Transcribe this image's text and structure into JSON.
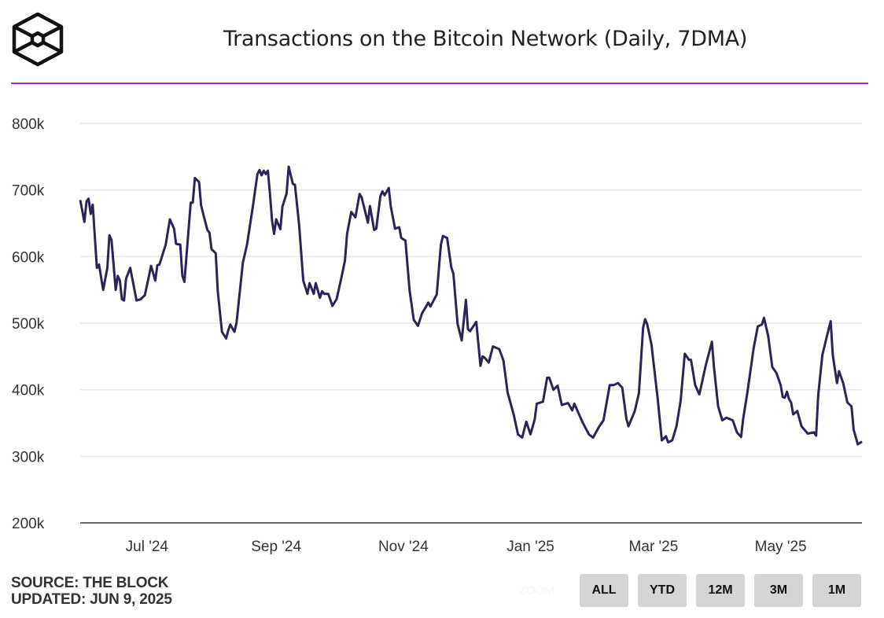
{
  "header": {
    "title": "Transactions on the Bitcoin Network (Daily, 7DMA)",
    "logo_icon": "the-block-cube-logo"
  },
  "footer": {
    "source": "SOURCE: THE BLOCK",
    "updated": "UPDATED: JUN 9, 2025"
  },
  "zoom": {
    "label": "ZOOM",
    "buttons": [
      "ALL",
      "YTD",
      "12M",
      "3M",
      "1M"
    ]
  },
  "colors": {
    "line": "#2a2458",
    "accent_rule": "#9b2bea",
    "grid": "#e6e6e6"
  },
  "chart_data": {
    "type": "line",
    "title": "Transactions on the Bitcoin Network (Daily, 7DMA)",
    "xlabel": "",
    "ylabel": "",
    "ylim": [
      200000,
      800000
    ],
    "y_ticks": [
      200000,
      300000,
      400000,
      500000,
      600000,
      700000,
      800000
    ],
    "y_tick_labels": [
      "200k",
      "300k",
      "400k",
      "500k",
      "600k",
      "700k",
      "800k"
    ],
    "x_ticks": [
      "2024-07-01",
      "2024-09-01",
      "2024-11-01",
      "2025-01-01",
      "2025-03-01",
      "2025-05-01"
    ],
    "x_tick_labels": [
      "Jul '24",
      "Sep '24",
      "Nov '24",
      "Jan '25",
      "Mar '25",
      "May '25"
    ],
    "xlim": [
      "2024-05-30",
      "2025-06-09"
    ],
    "grid": true,
    "legend": "none",
    "series": [
      {
        "points": [
          [
            "2024-05-30",
            685000
          ],
          [
            "2024-06-01",
            652000
          ],
          [
            "2024-06-02",
            683000
          ],
          [
            "2024-06-03",
            687000
          ],
          [
            "2024-06-04",
            664000
          ],
          [
            "2024-06-05",
            678000
          ],
          [
            "2024-06-07",
            583000
          ],
          [
            "2024-06-08",
            588000
          ],
          [
            "2024-06-10",
            550000
          ],
          [
            "2024-06-12",
            583000
          ],
          [
            "2024-06-13",
            632000
          ],
          [
            "2024-06-14",
            625000
          ],
          [
            "2024-06-16",
            550000
          ],
          [
            "2024-06-17",
            571000
          ],
          [
            "2024-06-18",
            564000
          ],
          [
            "2024-06-19",
            536000
          ],
          [
            "2024-06-20",
            534000
          ],
          [
            "2024-06-21",
            567000
          ],
          [
            "2024-06-23",
            583000
          ],
          [
            "2024-06-26",
            534000
          ],
          [
            "2024-06-28",
            536000
          ],
          [
            "2024-06-30",
            542000
          ],
          [
            "2024-07-03",
            586000
          ],
          [
            "2024-07-05",
            564000
          ],
          [
            "2024-07-06",
            587000
          ],
          [
            "2024-07-07",
            588000
          ],
          [
            "2024-07-10",
            618000
          ],
          [
            "2024-07-12",
            656000
          ],
          [
            "2024-07-14",
            642000
          ],
          [
            "2024-07-15",
            619000
          ],
          [
            "2024-07-17",
            618000
          ],
          [
            "2024-07-18",
            571000
          ],
          [
            "2024-07-19",
            562000
          ],
          [
            "2024-07-22",
            681000
          ],
          [
            "2024-07-23",
            681000
          ],
          [
            "2024-07-24",
            718000
          ],
          [
            "2024-07-26",
            712000
          ],
          [
            "2024-07-27",
            677000
          ],
          [
            "2024-07-28",
            664000
          ],
          [
            "2024-07-30",
            640000
          ],
          [
            "2024-07-31",
            636000
          ],
          [
            "2024-08-01",
            611000
          ],
          [
            "2024-08-03",
            605000
          ],
          [
            "2024-08-04",
            548000
          ],
          [
            "2024-08-06",
            487000
          ],
          [
            "2024-08-08",
            477000
          ],
          [
            "2024-08-09",
            489000
          ],
          [
            "2024-08-10",
            498000
          ],
          [
            "2024-08-12",
            487000
          ],
          [
            "2024-08-13",
            501000
          ],
          [
            "2024-08-16",
            591000
          ],
          [
            "2024-08-18",
            618000
          ],
          [
            "2024-08-21",
            679000
          ],
          [
            "2024-08-23",
            724000
          ],
          [
            "2024-08-24",
            730000
          ],
          [
            "2024-08-25",
            722000
          ],
          [
            "2024-08-26",
            729000
          ],
          [
            "2024-08-27",
            724000
          ],
          [
            "2024-08-28",
            729000
          ],
          [
            "2024-08-29",
            695000
          ],
          [
            "2024-08-30",
            654000
          ],
          [
            "2024-08-31",
            634000
          ],
          [
            "2024-09-01",
            656000
          ],
          [
            "2024-09-03",
            641000
          ],
          [
            "2024-09-04",
            675000
          ],
          [
            "2024-09-06",
            695000
          ],
          [
            "2024-09-07",
            735000
          ],
          [
            "2024-09-09",
            709000
          ],
          [
            "2024-09-10",
            708000
          ],
          [
            "2024-09-12",
            648000
          ],
          [
            "2024-09-14",
            564000
          ],
          [
            "2024-09-16",
            544000
          ],
          [
            "2024-09-17",
            560000
          ],
          [
            "2024-09-19",
            544000
          ],
          [
            "2024-09-20",
            560000
          ],
          [
            "2024-09-22",
            538000
          ],
          [
            "2024-09-23",
            548000
          ],
          [
            "2024-09-24",
            544000
          ],
          [
            "2024-09-26",
            544000
          ],
          [
            "2024-09-28",
            526000
          ],
          [
            "2024-09-30",
            536000
          ],
          [
            "2024-10-02",
            564000
          ],
          [
            "2024-10-04",
            594000
          ],
          [
            "2024-10-05",
            634000
          ],
          [
            "2024-10-07",
            667000
          ],
          [
            "2024-10-09",
            659000
          ],
          [
            "2024-10-11",
            694000
          ],
          [
            "2024-10-12",
            689000
          ],
          [
            "2024-10-15",
            651000
          ],
          [
            "2024-10-16",
            676000
          ],
          [
            "2024-10-18",
            640000
          ],
          [
            "2024-10-19",
            642000
          ],
          [
            "2024-10-21",
            691000
          ],
          [
            "2024-10-22",
            698000
          ],
          [
            "2024-10-23",
            692000
          ],
          [
            "2024-10-25",
            703000
          ],
          [
            "2024-10-26",
            675000
          ],
          [
            "2024-10-28",
            642000
          ],
          [
            "2024-10-30",
            644000
          ],
          [
            "2024-10-31",
            628000
          ],
          [
            "2024-11-02",
            624000
          ],
          [
            "2024-11-04",
            549000
          ],
          [
            "2024-11-06",
            505000
          ],
          [
            "2024-11-08",
            496000
          ],
          [
            "2024-11-10",
            515000
          ],
          [
            "2024-11-13",
            531000
          ],
          [
            "2024-11-14",
            525000
          ],
          [
            "2024-11-17",
            543000
          ],
          [
            "2024-11-19",
            618000
          ],
          [
            "2024-11-20",
            631000
          ],
          [
            "2024-11-22",
            628000
          ],
          [
            "2024-11-24",
            584000
          ],
          [
            "2024-11-25",
            574000
          ],
          [
            "2024-11-27",
            499000
          ],
          [
            "2024-11-29",
            474000
          ],
          [
            "2024-12-01",
            535000
          ],
          [
            "2024-12-02",
            491000
          ],
          [
            "2024-12-03",
            488000
          ],
          [
            "2024-12-06",
            502000
          ],
          [
            "2024-12-08",
            436000
          ],
          [
            "2024-12-09",
            450000
          ],
          [
            "2024-12-10",
            448000
          ],
          [
            "2024-12-12",
            441000
          ],
          [
            "2024-12-14",
            465000
          ],
          [
            "2024-12-17",
            461000
          ],
          [
            "2024-12-19",
            444000
          ],
          [
            "2024-12-21",
            396000
          ],
          [
            "2024-12-24",
            362000
          ],
          [
            "2024-12-26",
            333000
          ],
          [
            "2024-12-28",
            328000
          ],
          [
            "2024-12-30",
            352000
          ],
          [
            "2025-01-01",
            333000
          ],
          [
            "2025-01-03",
            355000
          ],
          [
            "2025-01-04",
            379000
          ],
          [
            "2025-01-07",
            382000
          ],
          [
            "2025-01-09",
            418000
          ],
          [
            "2025-01-10",
            418000
          ],
          [
            "2025-01-12",
            400000
          ],
          [
            "2025-01-14",
            406000
          ],
          [
            "2025-01-16",
            377000
          ],
          [
            "2025-01-19",
            380000
          ],
          [
            "2025-01-21",
            369000
          ],
          [
            "2025-01-22",
            379000
          ],
          [
            "2025-01-26",
            351000
          ],
          [
            "2025-01-29",
            333000
          ],
          [
            "2025-01-31",
            328000
          ],
          [
            "2025-02-03",
            345000
          ],
          [
            "2025-02-05",
            354000
          ],
          [
            "2025-02-08",
            407000
          ],
          [
            "2025-02-10",
            407000
          ],
          [
            "2025-02-12",
            410000
          ],
          [
            "2025-02-14",
            403000
          ],
          [
            "2025-02-16",
            356000
          ],
          [
            "2025-02-17",
            345000
          ],
          [
            "2025-02-20",
            368000
          ],
          [
            "2025-02-22",
            395000
          ],
          [
            "2025-02-24",
            493000
          ],
          [
            "2025-02-25",
            506000
          ],
          [
            "2025-02-26",
            498000
          ],
          [
            "2025-02-28",
            468000
          ],
          [
            "2025-03-03",
            387000
          ],
          [
            "2025-03-05",
            324000
          ],
          [
            "2025-03-07",
            330000
          ],
          [
            "2025-03-08",
            321000
          ],
          [
            "2025-03-10",
            324000
          ],
          [
            "2025-03-12",
            345000
          ],
          [
            "2025-03-14",
            383000
          ],
          [
            "2025-03-16",
            454000
          ],
          [
            "2025-03-18",
            445000
          ],
          [
            "2025-03-19",
            445000
          ],
          [
            "2025-03-21",
            407000
          ],
          [
            "2025-03-23",
            393000
          ],
          [
            "2025-03-24",
            407000
          ],
          [
            "2025-03-26",
            436000
          ],
          [
            "2025-03-29",
            472000
          ],
          [
            "2025-03-30",
            434000
          ],
          [
            "2025-04-01",
            375000
          ],
          [
            "2025-04-03",
            354000
          ],
          [
            "2025-04-05",
            358000
          ],
          [
            "2025-04-08",
            354000
          ],
          [
            "2025-04-10",
            336000
          ],
          [
            "2025-04-12",
            329000
          ],
          [
            "2025-04-13",
            356000
          ],
          [
            "2025-04-15",
            395000
          ],
          [
            "2025-04-18",
            462000
          ],
          [
            "2025-04-20",
            495000
          ],
          [
            "2025-04-22",
            498000
          ],
          [
            "2025-04-23",
            508000
          ],
          [
            "2025-04-25",
            481000
          ],
          [
            "2025-04-27",
            434000
          ],
          [
            "2025-04-29",
            425000
          ],
          [
            "2025-05-01",
            407000
          ],
          [
            "2025-05-02",
            389000
          ],
          [
            "2025-05-03",
            388000
          ],
          [
            "2025-05-04",
            397000
          ],
          [
            "2025-05-05",
            386000
          ],
          [
            "2025-05-06",
            381000
          ],
          [
            "2025-05-07",
            363000
          ],
          [
            "2025-05-09",
            368000
          ],
          [
            "2025-05-11",
            345000
          ],
          [
            "2025-05-14",
            334000
          ],
          [
            "2025-05-17",
            336000
          ],
          [
            "2025-05-18",
            331000
          ],
          [
            "2025-05-19",
            391000
          ],
          [
            "2025-05-21",
            452000
          ],
          [
            "2025-05-23",
            478000
          ],
          [
            "2025-05-25",
            503000
          ],
          [
            "2025-05-26",
            452000
          ],
          [
            "2025-05-28",
            410000
          ],
          [
            "2025-05-29",
            428000
          ],
          [
            "2025-05-31",
            410000
          ],
          [
            "2025-06-02",
            381000
          ],
          [
            "2025-06-04",
            375000
          ],
          [
            "2025-06-05",
            340000
          ],
          [
            "2025-06-07",
            318000
          ],
          [
            "2025-06-09",
            322000
          ]
        ]
      }
    ]
  }
}
